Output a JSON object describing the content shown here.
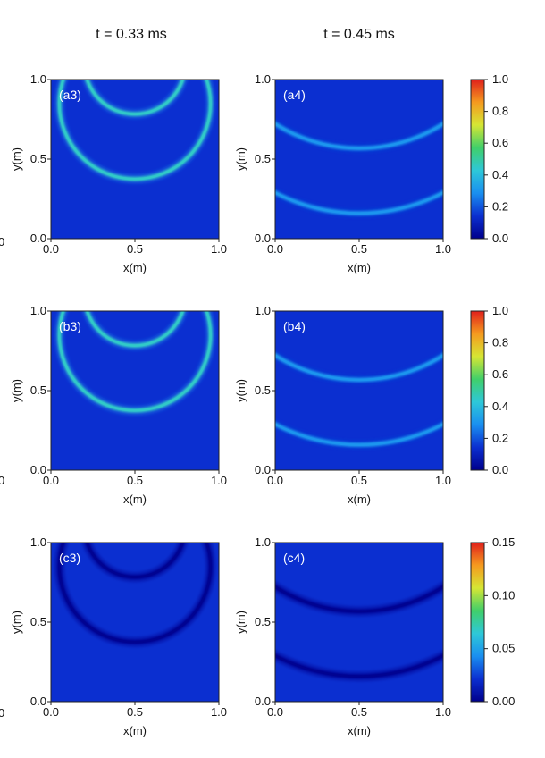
{
  "chart_data": {
    "type": "heatmap",
    "column_titles": [
      "t = 0.33 ms",
      "t = 0.45 ms"
    ],
    "xlabel": "x(m)",
    "ylabel": "y(m)",
    "xlim": [
      0.0,
      1.0
    ],
    "ylim": [
      0.0,
      1.0
    ],
    "x_ticks": [
      "0.0",
      "0.5",
      "1.0"
    ],
    "y_ticks": [
      "0.0",
      "0.5",
      "1.0"
    ],
    "left_edge_tick": "0",
    "colormap": [
      "#00008c",
      "#0b2fd0",
      "#1a8ff0",
      "#2ec8d8",
      "#40cf6a",
      "#d6e634",
      "#f59a1f",
      "#e0201c"
    ],
    "background_color": "#0b2fd0",
    "panels": [
      {
        "label": "(a3)",
        "row": 0,
        "col": 0,
        "ring_value": 0.45,
        "rings": [
          {
            "cx": 0.5,
            "cy": 1.1,
            "r": 0.3
          },
          {
            "cx": 0.5,
            "cy": 0.85,
            "r": 0.45
          }
        ]
      },
      {
        "label": "(a4)",
        "row": 0,
        "col": 1,
        "ring_value": 0.3,
        "rings": [
          {
            "cx": 0.5,
            "cy": 1.55,
            "r": 0.93
          },
          {
            "cx": 0.5,
            "cy": 1.3,
            "r": 1.08
          }
        ]
      },
      {
        "label": "(b3)",
        "row": 1,
        "col": 0,
        "ring_value": 0.45,
        "rings": [
          {
            "cx": 0.5,
            "cy": 1.1,
            "r": 0.3
          },
          {
            "cx": 0.5,
            "cy": 0.85,
            "r": 0.45
          }
        ]
      },
      {
        "label": "(b4)",
        "row": 1,
        "col": 1,
        "ring_value": 0.3,
        "rings": [
          {
            "cx": 0.5,
            "cy": 1.55,
            "r": 0.93
          },
          {
            "cx": 0.5,
            "cy": 1.3,
            "r": 1.08
          }
        ]
      },
      {
        "label": "(c3)",
        "row": 2,
        "col": 0,
        "ring_value": 0.01,
        "rings": [
          {
            "cx": 0.5,
            "cy": 1.1,
            "r": 0.3
          },
          {
            "cx": 0.5,
            "cy": 0.85,
            "r": 0.45
          }
        ]
      },
      {
        "label": "(c4)",
        "row": 2,
        "col": 1,
        "ring_value": 0.01,
        "rings": [
          {
            "cx": 0.5,
            "cy": 1.55,
            "r": 0.93
          },
          {
            "cx": 0.5,
            "cy": 1.3,
            "r": 1.08
          }
        ]
      }
    ],
    "colorbars": [
      {
        "row": 0,
        "ticks": [
          "0.0",
          "0.2",
          "0.4",
          "0.6",
          "0.8",
          "1.0"
        ],
        "range": [
          0.0,
          1.0
        ]
      },
      {
        "row": 1,
        "ticks": [
          "0.0",
          "0.2",
          "0.4",
          "0.6",
          "0.8",
          "1.0"
        ],
        "range": [
          0.0,
          1.0
        ]
      },
      {
        "row": 2,
        "ticks": [
          "0.00",
          "0.05",
          "0.10",
          "0.15"
        ],
        "range": [
          0.0,
          0.15
        ]
      }
    ]
  }
}
